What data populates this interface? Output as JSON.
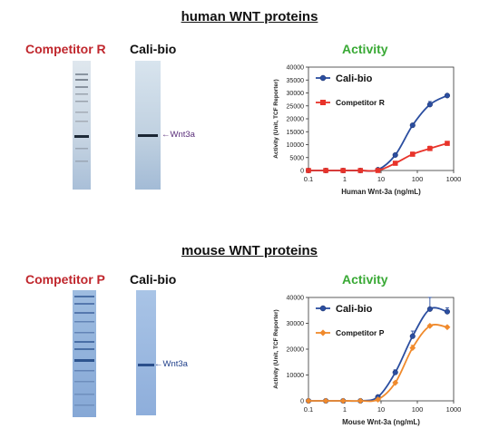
{
  "panels": [
    {
      "title": "human WNT proteins",
      "competitor_label": "Competitor R",
      "calibio_label": "Cali-bio",
      "band_label": "Wnt3a",
      "activity_label": "Activity",
      "colors": {
        "calibio": "#2b4ea0",
        "competitor": "#e8332a",
        "band_label": "#5a2e7a"
      }
    },
    {
      "title": "mouse WNT proteins",
      "competitor_label": "Competitor P",
      "calibio_label": "Cali-bio",
      "band_label": "Wnt3a",
      "activity_label": "Activity",
      "colors": {
        "calibio": "#2b4ea0",
        "competitor": "#f08a2c",
        "band_label": "#1f3f8a"
      }
    }
  ],
  "chart_data": [
    {
      "type": "line",
      "xscale": "log",
      "xlabel": "Human Wnt-3a (ng/mL)",
      "ylabel": "Activity (Unit, TCF Reporter)",
      "xlim": [
        0.1,
        1000
      ],
      "ylim": [
        0,
        40000
      ],
      "xticks": [
        "0.1",
        "1",
        "10",
        "100",
        "1000"
      ],
      "yticks": [
        "0",
        "5000",
        "10000",
        "15000",
        "20000",
        "25000",
        "30000",
        "35000",
        "40000"
      ],
      "x": [
        0.1,
        0.3,
        0.9,
        2.7,
        8.2,
        24.7,
        74,
        222,
        667
      ],
      "series": [
        {
          "name": "Cali-bio",
          "marker": "circle",
          "values": [
            0,
            0,
            0,
            0,
            300,
            6000,
            17500,
            25500,
            29000
          ],
          "err": [
            0,
            0,
            0,
            0,
            0,
            400,
            600,
            1200,
            500
          ]
        },
        {
          "name": "Competitor R",
          "marker": "square",
          "values": [
            0,
            0,
            0,
            0,
            0,
            2800,
            6300,
            8500,
            10500
          ],
          "err": [
            0,
            0,
            0,
            0,
            0,
            300,
            800,
            900,
            400
          ]
        }
      ],
      "legend": "top-left"
    },
    {
      "type": "line",
      "xscale": "log",
      "xlabel": "Mouse Wnt-3a (ng/mL)",
      "ylabel": "Activity (Unit, TCF Reporter)",
      "xlim": [
        0.1,
        1000
      ],
      "ylim": [
        0,
        40000
      ],
      "xticks": [
        "0.1",
        "1",
        "10",
        "100",
        "1000"
      ],
      "yticks": [
        "0",
        "10000",
        "20000",
        "30000",
        "40000"
      ],
      "x": [
        0.1,
        0.3,
        0.9,
        2.7,
        8.2,
        24.7,
        74,
        222,
        667
      ],
      "series": [
        {
          "name": "Cali-bio",
          "marker": "circle",
          "values": [
            0,
            0,
            0,
            0,
            1500,
            11000,
            25000,
            35500,
            34500
          ],
          "err": [
            0,
            0,
            0,
            0,
            300,
            1000,
            2000,
            4500,
            1500
          ]
        },
        {
          "name": "Competitor P",
          "marker": "diamond",
          "values": [
            0,
            0,
            0,
            0,
            500,
            7000,
            20500,
            29000,
            28500
          ],
          "err": [
            0,
            0,
            0,
            0,
            200,
            500,
            1000,
            500,
            500
          ]
        }
      ],
      "legend": "top-left"
    }
  ]
}
